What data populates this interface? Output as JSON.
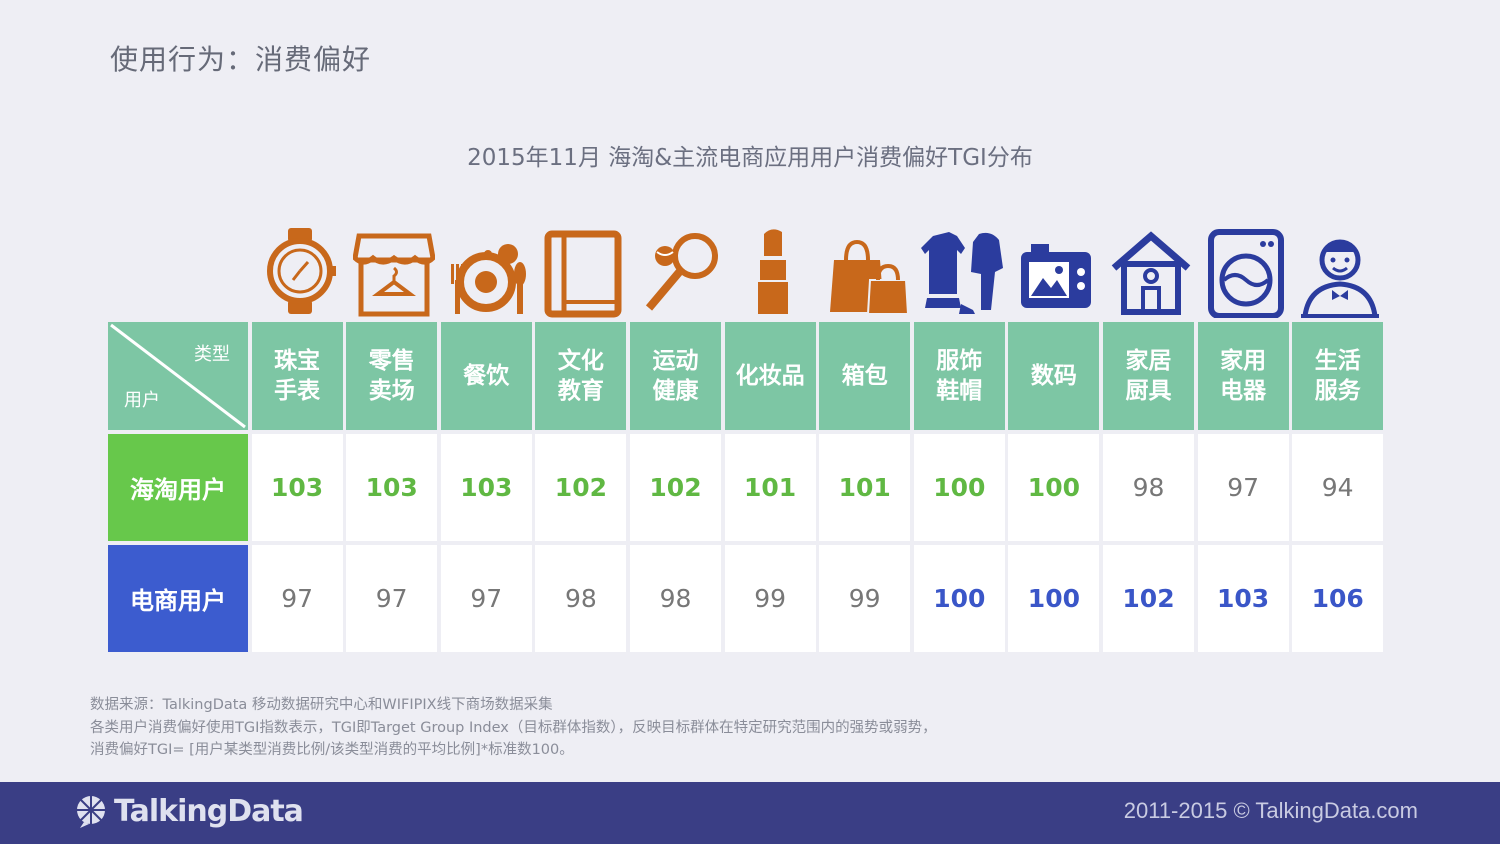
{
  "page_title": "使用行为：消费偏好",
  "chart_data": {
    "type": "table",
    "title": "2015年11月 海淘&主流电商应用用户消费偏好TGI分布",
    "corner_labels": {
      "column_axis": "类型",
      "row_axis": "用户"
    },
    "categories": [
      {
        "label": "珠宝\n手表",
        "icon": "watch-icon",
        "icon_color": "#c8681b"
      },
      {
        "label": "零售\n卖场",
        "icon": "storefront-icon",
        "icon_color": "#c8681b"
      },
      {
        "label": "餐饮",
        "icon": "dining-plate-icon",
        "icon_color": "#c8681b"
      },
      {
        "label": "文化\n教育",
        "icon": "book-icon",
        "icon_color": "#c8681b"
      },
      {
        "label": "运动\n健康",
        "icon": "tennis-racket-icon",
        "icon_color": "#c8681b"
      },
      {
        "label": "化妆品",
        "icon": "lipstick-icon",
        "icon_color": "#c8681b"
      },
      {
        "label": "箱包",
        "icon": "shopping-bags-icon",
        "icon_color": "#c8681b"
      },
      {
        "label": "服饰\n鞋帽",
        "icon": "clothing-icon",
        "icon_color": "#2b3c9e"
      },
      {
        "label": "数码",
        "icon": "camera-icon",
        "icon_color": "#2b3c9e"
      },
      {
        "label": "家居\n厨具",
        "icon": "house-icon",
        "icon_color": "#2b3c9e"
      },
      {
        "label": "家用\n电器",
        "icon": "washing-machine-icon",
        "icon_color": "#2b3c9e"
      },
      {
        "label": "生活\n服务",
        "icon": "waiter-icon",
        "icon_color": "#2b3c9e"
      }
    ],
    "series": [
      {
        "name": "海淘用户",
        "values": [
          103,
          103,
          103,
          102,
          102,
          101,
          101,
          100,
          100,
          98,
          97,
          94
        ]
      },
      {
        "name": "电商用户",
        "values": [
          97,
          97,
          97,
          98,
          98,
          99,
          99,
          100,
          100,
          102,
          103,
          106
        ]
      }
    ],
    "highlight_threshold": 100,
    "colors": {
      "header_bg": "#7dc6a4",
      "row1_label_bg": "#67c84b",
      "row2_label_bg": "#3c5ccf",
      "row1_highlight": "#60b843",
      "row2_highlight": "#3a56c8"
    }
  },
  "notes": [
    "数据来源：TalkingData 移动数据研究中心和WIFIPIX线下商场数据采集",
    "各类用户消费偏好使用TGI指数表示，TGI即Target Group Index（目标群体指数），反映目标群体在特定研究范围内的强势或弱势，",
    "消费偏好TGI= [用户某类型消费比例/该类型消费的平均比例]*标准数100。"
  ],
  "footer": {
    "logo_text": "TalkingData",
    "copyright": "2011-2015 © TalkingData.com"
  }
}
